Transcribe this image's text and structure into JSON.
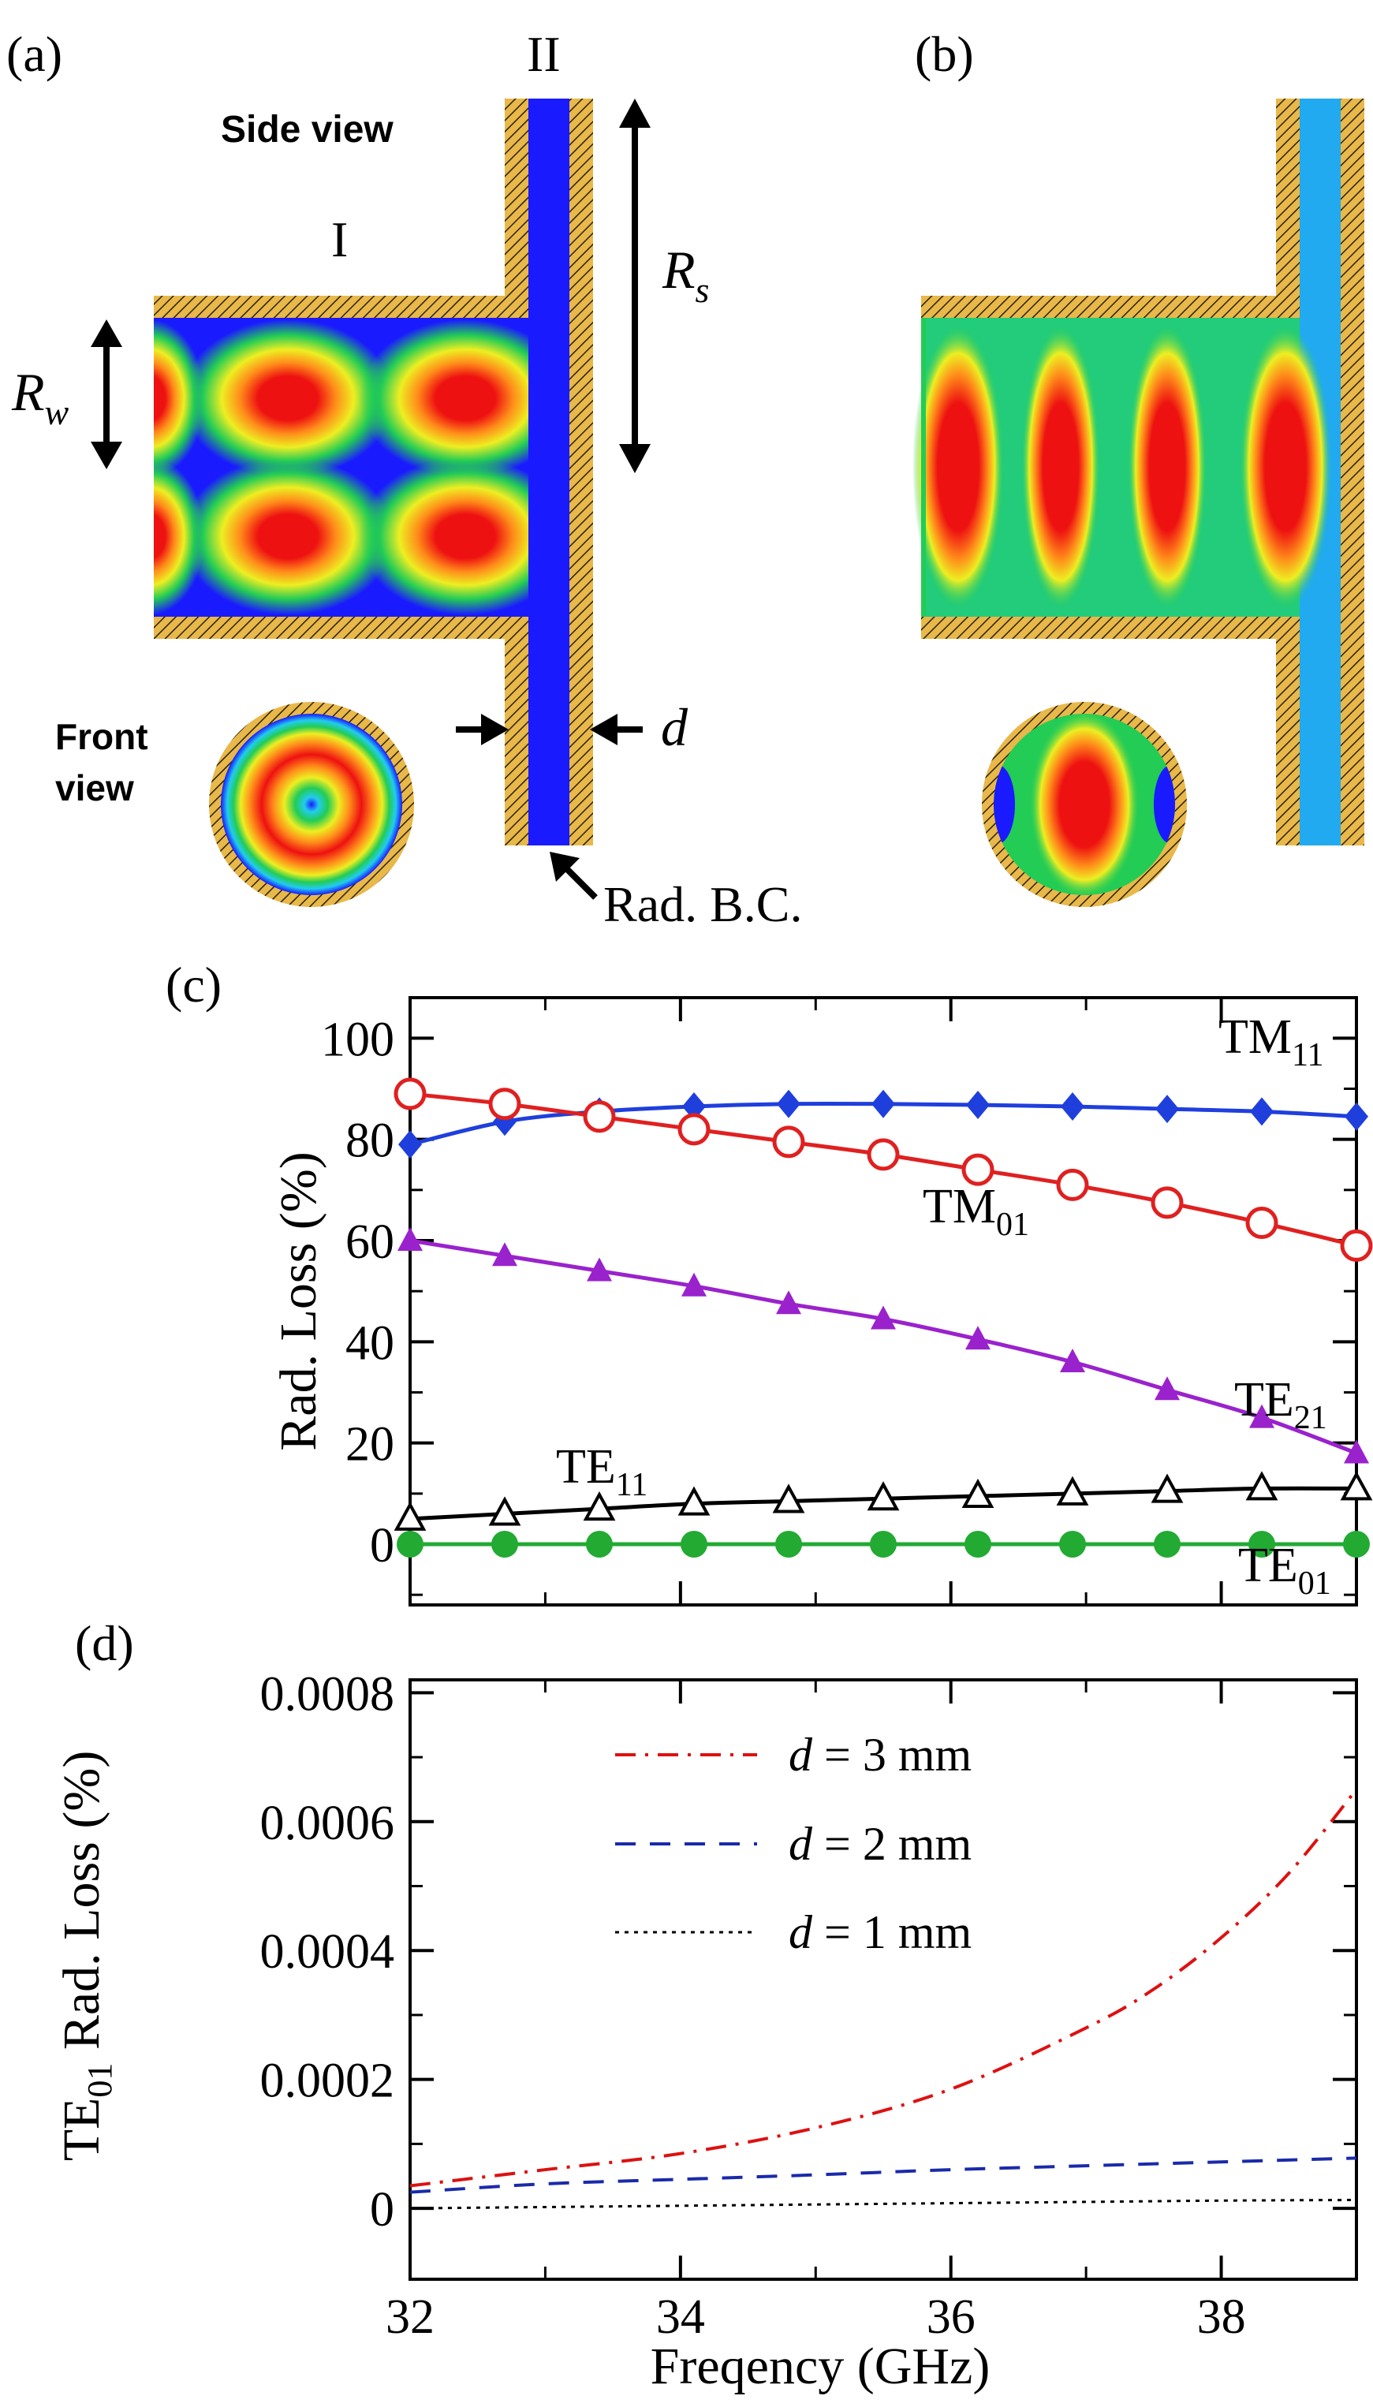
{
  "panels": {
    "a": {
      "label": "(a)",
      "region_I": "I",
      "region_II": "II",
      "side_view": "Side view",
      "front_view_line1": "Front",
      "front_view_line2": "view",
      "rw_symbol": "R",
      "rw_sub": "w",
      "rs_symbol": "R",
      "rs_sub": "s",
      "d_symbol": "d",
      "rad_bc": "Rad. B.C."
    },
    "b": {
      "label": "(b)"
    },
    "c": {
      "label": "(c)"
    },
    "d": {
      "label": "(d)"
    }
  },
  "colors": {
    "wall": "#e8b84a",
    "hatch": "#2a2000",
    "field_blue": "#1a1aff",
    "field_cyan": "#22ccee",
    "field_green": "#22cc55",
    "field_yellow": "#eeee22",
    "field_orange": "#ff8c1a",
    "field_red": "#ee1111",
    "tm11": "#1f3fdd",
    "tm01": "#e02020",
    "te21": "#9a22cc",
    "te11": "#000000",
    "te01": "#22aa33",
    "d3": "#dd1111",
    "d2": "#1a2aaa",
    "d1": "#000000"
  },
  "chart_data": [
    {
      "type": "line",
      "panel": "(c)",
      "xlabel": "",
      "ylabel": "Rad. Loss (%)",
      "xlim": [
        32,
        39
      ],
      "ylim": [
        -12,
        108
      ],
      "yticks": [
        "0",
        "20",
        "40",
        "60",
        "80",
        "100"
      ],
      "yticks_values": [
        0,
        20,
        40,
        60,
        80,
        100
      ],
      "series": [
        {
          "name": "TM",
          "sub": "11",
          "marker": "filled-diamond",
          "color_key": "tm11",
          "x": [
            32,
            32.7,
            33.4,
            34.1,
            34.8,
            35.5,
            36.2,
            36.9,
            37.6,
            38.3,
            39
          ],
          "values": [
            79,
            83.5,
            85.5,
            86.5,
            87,
            87,
            86.8,
            86.5,
            86,
            85.5,
            84.5
          ]
        },
        {
          "name": "TM",
          "sub": "01",
          "marker": "open-circle",
          "color_key": "tm01",
          "x": [
            32,
            32.7,
            33.4,
            34.1,
            34.8,
            35.5,
            36.2,
            36.9,
            37.6,
            38.3,
            39
          ],
          "values": [
            89,
            87,
            84.5,
            82,
            79.5,
            77,
            74,
            71,
            67.5,
            63.5,
            59
          ]
        },
        {
          "name": "TE",
          "sub": "21",
          "marker": "filled-triangle",
          "color_key": "te21",
          "x": [
            32,
            32.7,
            33.4,
            34.1,
            34.8,
            35.5,
            36.2,
            36.9,
            37.6,
            38.3,
            39
          ],
          "values": [
            60,
            57,
            54,
            51,
            47.5,
            44.5,
            40.5,
            36,
            30.5,
            25,
            18
          ]
        },
        {
          "name": "TE",
          "sub": "11",
          "marker": "open-triangle",
          "color_key": "te11",
          "x": [
            32,
            32.7,
            33.4,
            34.1,
            34.8,
            35.5,
            36.2,
            36.9,
            37.6,
            38.3,
            39
          ],
          "values": [
            5,
            6,
            7,
            8,
            8.5,
            9,
            9.5,
            10,
            10.5,
            11,
            11
          ]
        },
        {
          "name": "TE",
          "sub": "01",
          "marker": "filled-circle",
          "color_key": "te01",
          "x": [
            32,
            32.7,
            33.4,
            34.1,
            34.8,
            35.5,
            36.2,
            36.9,
            37.6,
            38.3,
            39
          ],
          "values": [
            0,
            0,
            0,
            0,
            0,
            0,
            0,
            0,
            0,
            0,
            0
          ]
        }
      ]
    },
    {
      "type": "line",
      "panel": "(d)",
      "xlabel": "Freqency (GHz)",
      "ylabel_prefix": "TE",
      "ylabel_sub": "01",
      "ylabel_suffix": " Rad. Loss (%)",
      "xlim": [
        32,
        39
      ],
      "ylim": [
        -0.00011,
        0.00082
      ],
      "xticks": [
        "32",
        "34",
        "36",
        "38"
      ],
      "xticks_values": [
        32,
        34,
        36,
        38
      ],
      "yticks": [
        "0",
        "0.0002",
        "0.0004",
        "0.0006",
        "0.0008"
      ],
      "yticks_values": [
        0,
        0.0002,
        0.0004,
        0.0006,
        0.0008
      ],
      "series": [
        {
          "name_var": "d",
          "name_rest": " = 3 mm",
          "style": "dash-dot",
          "color_key": "d3",
          "x": [
            32,
            33,
            34,
            35,
            36,
            37,
            37.5,
            38,
            38.5,
            39
          ],
          "values": [
            3.5e-05,
            6e-05,
            8.5e-05,
            0.000125,
            0.000185,
            0.00028,
            0.00034,
            0.00042,
            0.00052,
            0.00065
          ]
        },
        {
          "name_var": "d",
          "name_rest": " = 2 mm",
          "style": "dashed",
          "color_key": "d2",
          "x": [
            32,
            33,
            34,
            35,
            36,
            37,
            38,
            39
          ],
          "values": [
            2.5e-05,
            3.8e-05,
            4.5e-05,
            5.2e-05,
            6e-05,
            6.6e-05,
            7.2e-05,
            7.8e-05
          ]
        },
        {
          "name_var": "d",
          "name_rest": " = 1 mm",
          "style": "dotted",
          "color_key": "d1",
          "x": [
            32,
            33,
            34,
            35,
            36,
            37,
            38,
            39
          ],
          "values": [
            0.0,
            2e-06,
            4e-06,
            6e-06,
            8e-06,
            1e-05,
            1.2e-05,
            1.3e-05
          ]
        }
      ]
    }
  ]
}
